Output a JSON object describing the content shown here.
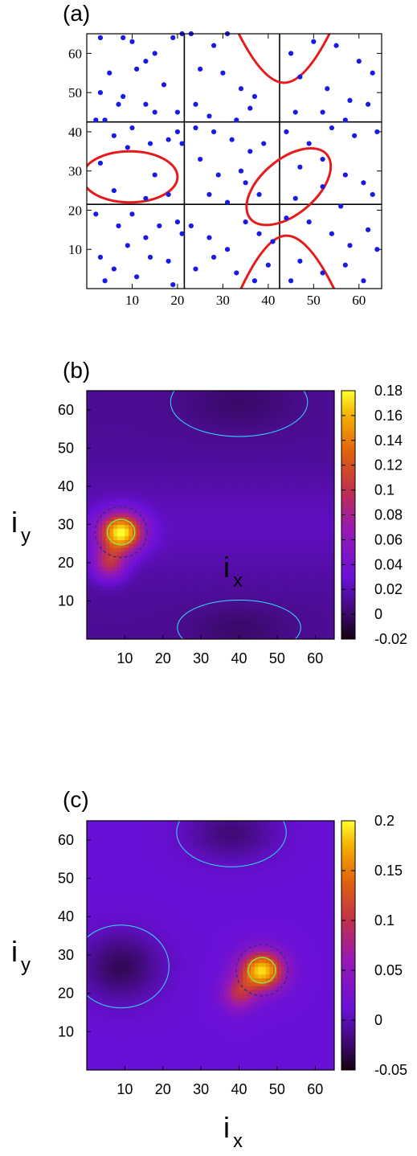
{
  "chart_data": [
    {
      "panel": "(a)",
      "type": "scatter",
      "xlim": [
        0,
        65
      ],
      "ylim": [
        0,
        65
      ],
      "xticks": [
        10,
        20,
        30,
        40,
        50,
        60
      ],
      "yticks": [
        10,
        20,
        30,
        40,
        50,
        60
      ],
      "grid_lines_x": [
        21.5,
        42.5
      ],
      "grid_lines_y": [
        21.5,
        42.5
      ],
      "colors": {
        "points": "#1a1ae6",
        "curves": "#e61a1a",
        "frame": "#000000"
      },
      "points": [
        [
          3,
          64
        ],
        [
          8,
          64
        ],
        [
          10,
          63
        ],
        [
          13,
          58
        ],
        [
          15,
          60
        ],
        [
          19,
          64
        ],
        [
          21,
          65
        ],
        [
          5,
          55
        ],
        [
          11,
          56
        ],
        [
          3,
          50
        ],
        [
          8,
          49
        ],
        [
          13,
          47
        ],
        [
          17,
          52
        ],
        [
          20,
          45
        ],
        [
          2,
          43
        ],
        [
          7,
          47
        ],
        [
          15,
          45
        ],
        [
          4,
          43
        ],
        [
          6,
          39
        ],
        [
          10,
          41
        ],
        [
          14,
          37
        ],
        [
          18,
          38
        ],
        [
          20,
          40
        ],
        [
          3,
          32
        ],
        [
          9,
          36
        ],
        [
          15,
          29
        ],
        [
          6,
          25
        ],
        [
          13,
          23
        ],
        [
          18,
          24
        ],
        [
          21,
          37
        ],
        [
          2,
          19
        ],
        [
          7,
          16
        ],
        [
          10,
          19
        ],
        [
          13,
          13
        ],
        [
          16,
          16
        ],
        [
          20,
          17
        ],
        [
          3,
          8
        ],
        [
          6,
          5
        ],
        [
          9,
          11
        ],
        [
          14,
          8
        ],
        [
          18,
          7
        ],
        [
          21,
          14
        ],
        [
          4,
          2
        ],
        [
          11,
          3
        ],
        [
          19,
          1
        ],
        [
          23,
          65
        ],
        [
          28,
          62
        ],
        [
          31,
          65
        ],
        [
          25,
          56
        ],
        [
          30,
          55
        ],
        [
          34,
          51
        ],
        [
          37,
          49
        ],
        [
          24,
          47
        ],
        [
          27,
          44
        ],
        [
          33,
          43
        ],
        [
          36,
          46
        ],
        [
          24,
          41
        ],
        [
          28,
          40
        ],
        [
          32,
          38
        ],
        [
          36,
          35
        ],
        [
          39,
          37
        ],
        [
          25,
          33
        ],
        [
          29,
          29
        ],
        [
          34,
          30
        ],
        [
          38,
          24
        ],
        [
          27,
          24
        ],
        [
          31,
          22
        ],
        [
          35,
          27
        ],
        [
          23,
          16
        ],
        [
          27,
          13
        ],
        [
          31,
          10
        ],
        [
          35,
          17
        ],
        [
          38,
          14
        ],
        [
          41,
          12
        ],
        [
          24,
          5
        ],
        [
          28,
          8
        ],
        [
          33,
          4
        ],
        [
          37,
          2
        ],
        [
          40,
          6
        ],
        [
          45,
          60
        ],
        [
          50,
          63
        ],
        [
          55,
          62
        ],
        [
          60,
          58
        ],
        [
          47,
          54
        ],
        [
          53,
          51
        ],
        [
          58,
          48
        ],
        [
          63,
          55
        ],
        [
          46,
          45
        ],
        [
          52,
          45
        ],
        [
          57,
          43
        ],
        [
          62,
          47
        ],
        [
          44,
          40
        ],
        [
          49,
          37
        ],
        [
          54,
          41
        ],
        [
          59,
          39
        ],
        [
          64,
          40
        ],
        [
          47,
          31
        ],
        [
          52,
          33
        ],
        [
          57,
          29
        ],
        [
          61,
          27
        ],
        [
          46,
          23
        ],
        [
          52,
          26
        ],
        [
          56,
          21
        ],
        [
          63,
          24
        ],
        [
          44,
          18
        ],
        [
          49,
          17
        ],
        [
          54,
          14
        ],
        [
          58,
          11
        ],
        [
          62,
          15
        ],
        [
          47,
          7
        ],
        [
          52,
          4
        ],
        [
          57,
          6
        ],
        [
          61,
          2
        ],
        [
          64,
          10
        ],
        [
          45,
          2
        ]
      ],
      "curves": [
        {
          "name": "ellipse-left",
          "shape": "ellipse",
          "center": [
            9.5,
            28.5
          ],
          "radii": [
            10.5,
            6.5
          ],
          "angle": 0
        },
        {
          "name": "ellipse-right",
          "shape": "ellipse",
          "center": [
            44.5,
            26
          ],
          "radii": [
            11,
            7
          ],
          "angle": -40
        },
        {
          "name": "hyperbola-top",
          "shape": "parabola",
          "apex": [
            43.5,
            52.5
          ],
          "ends": [
            [
              33.5,
              65
            ],
            [
              53.5,
              65
            ]
          ]
        },
        {
          "name": "hyperbola-bottom",
          "shape": "parabola",
          "apex": [
            44,
            13.5
          ],
          "ends": [
            [
              34,
              0
            ],
            [
              54.5,
              0
            ]
          ]
        }
      ],
      "title": "",
      "xlabel": "",
      "ylabel": ""
    },
    {
      "panel": "(b)",
      "type": "heatmap",
      "xlim": [
        0,
        65
      ],
      "ylim": [
        0,
        65
      ],
      "xticks": [
        10,
        20,
        30,
        40,
        50,
        60
      ],
      "yticks": [
        10,
        20,
        30,
        40,
        50,
        60
      ],
      "xlabel": "i",
      "xlabel_sub": "x",
      "ylabel": "i",
      "ylabel_sub": "y",
      "colorbar_ticks": [
        "0.18",
        "0.16",
        "0.14",
        "0.12",
        "0.1",
        "0.08",
        "0.06",
        "0.04",
        "0.02",
        "0",
        "-0.02"
      ],
      "zlim": [
        -0.02,
        0.18
      ],
      "background_value": 0.012,
      "features": [
        {
          "kind": "peak",
          "center": [
            9,
            28
          ],
          "value": 0.17,
          "sigma": [
            4,
            3.5
          ]
        },
        {
          "kind": "peak",
          "center": [
            6,
            20
          ],
          "value": 0.09,
          "sigma": [
            3,
            3
          ]
        },
        {
          "kind": "band",
          "y": 30,
          "value": 0.03,
          "width": 9
        },
        {
          "kind": "dip",
          "center": [
            40,
            62
          ],
          "value": 0.0,
          "sigma": [
            10,
            5
          ]
        },
        {
          "kind": "dip",
          "center": [
            40,
            3
          ],
          "value": 0.0,
          "sigma": [
            9,
            4
          ]
        }
      ],
      "contour_colors": {
        "zero": "#33ddff",
        "mid": "#2b2b8c",
        "high": "#99dd44"
      }
    },
    {
      "panel": "(c)",
      "type": "heatmap",
      "xlim": [
        0,
        65
      ],
      "ylim": [
        0,
        65
      ],
      "xticks": [
        10,
        20,
        30,
        40,
        50,
        60
      ],
      "yticks": [
        10,
        20,
        30,
        40,
        50,
        60
      ],
      "xlabel": "i",
      "xlabel_sub": "x",
      "ylabel": "i",
      "ylabel_sub": "y",
      "colorbar_ticks": [
        "0.2",
        "0.15",
        "0.1",
        "0.05",
        "0",
        "-0.05"
      ],
      "zlim": [
        -0.05,
        0.2
      ],
      "background_value": 0.012,
      "features": [
        {
          "kind": "peak",
          "center": [
            46,
            26
          ],
          "value": 0.19,
          "sigma": [
            4,
            3.5
          ]
        },
        {
          "kind": "peak",
          "center": [
            40,
            20
          ],
          "value": 0.09,
          "sigma": [
            3,
            3
          ]
        },
        {
          "kind": "dip",
          "center": [
            9,
            27
          ],
          "value": -0.03,
          "sigma": [
            7,
            6
          ]
        },
        {
          "kind": "dip",
          "center": [
            38,
            62
          ],
          "value": -0.02,
          "sigma": [
            8,
            5
          ]
        }
      ],
      "contour_colors": {
        "zero": "#33ddff",
        "mid": "#2b2b8c",
        "high": "#99dd44"
      }
    }
  ]
}
